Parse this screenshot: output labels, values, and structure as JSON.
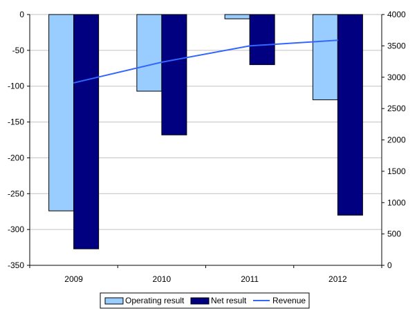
{
  "chart_data": {
    "type": "bar",
    "categories": [
      "2009",
      "2010",
      "2011",
      "2012"
    ],
    "series": [
      {
        "name": "Operating result",
        "type": "bar",
        "axis": "left",
        "color": "#99CCFF",
        "values": [
          -274,
          -107,
          -6,
          -119
        ]
      },
      {
        "name": "Net result",
        "type": "bar",
        "axis": "left",
        "color": "#000080",
        "values": [
          -327,
          -168,
          -70,
          -280
        ]
      },
      {
        "name": "Revenue",
        "type": "line",
        "axis": "right",
        "color": "#3366FF",
        "values": [
          2910,
          3240,
          3500,
          3590
        ]
      }
    ],
    "y_left": {
      "range": [
        -350,
        0
      ],
      "ticks": [
        0,
        -50,
        -100,
        -150,
        -200,
        -250,
        -300,
        -350
      ]
    },
    "y_right": {
      "range": [
        0,
        4000
      ],
      "ticks": [
        0,
        500,
        1000,
        1500,
        2000,
        2500,
        3000,
        3500,
        4000
      ]
    },
    "grid": true,
    "legend": "bottom"
  }
}
